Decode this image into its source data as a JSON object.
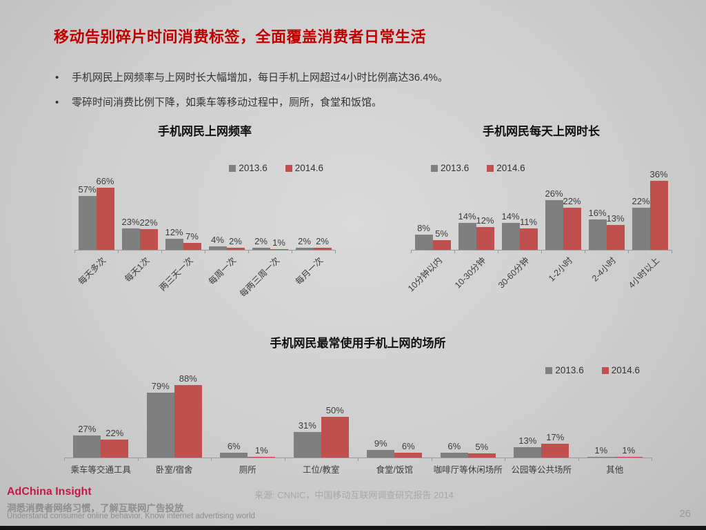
{
  "slide": {
    "title": "移动告别碎片时间消费标签，全面覆盖消费者日常生活",
    "title_color": "#C00000",
    "bullets": [
      "手机网民上网频率与上网时长大幅增加，每日手机上网超过4小时比例高达36.4%。",
      "零碎时间消费比例下降，如乘车等移动过程中，厕所，食堂和饭馆。"
    ]
  },
  "colors": {
    "series_2013": "#7F7F7F",
    "series_2014": "#C0504D",
    "axis": "#9a9a9a"
  },
  "chart_data": [
    {
      "type": "bar",
      "title": "手机网民上网频率",
      "unit": "%",
      "categories": [
        "每天多次",
        "每天1次",
        "两三天一次",
        "每周一次",
        "每两三周一次",
        "每月一次"
      ],
      "series": [
        {
          "name": "2013.6",
          "color": "#7F7F7F",
          "values": [
            57,
            23,
            12,
            4,
            2,
            2
          ]
        },
        {
          "name": "2014.6",
          "color": "#C0504D",
          "values": [
            66,
            22,
            7,
            2,
            1,
            2
          ]
        }
      ],
      "ylim": [
        0,
        90
      ],
      "grid": false,
      "legend_position": "top-right",
      "rotated_tick_labels": true
    },
    {
      "type": "bar",
      "title": "手机网民每天上网时长",
      "unit": "%",
      "categories": [
        "10分钟以内",
        "10-30分钟",
        "30-60分钟",
        "1-2小时",
        "2-4小时",
        "4小时以上"
      ],
      "series": [
        {
          "name": "2013.6",
          "color": "#7F7F7F",
          "values": [
            8,
            14,
            14,
            26,
            16,
            22
          ]
        },
        {
          "name": "2014.6",
          "color": "#C0504D",
          "values": [
            5,
            12,
            11,
            22,
            13,
            36
          ]
        }
      ],
      "ylim": [
        0,
        45
      ],
      "grid": false,
      "legend_position": "top-left",
      "rotated_tick_labels": true
    },
    {
      "type": "bar",
      "title": "手机网民最常使用手机上网的场所",
      "unit": "%",
      "categories": [
        "乘车等交通工具",
        "卧室/宿舍",
        "厕所",
        "工位/教室",
        "食堂/饭馆",
        "咖啡厅等休闲场所",
        "公园等公共场所",
        "其他"
      ],
      "series": [
        {
          "name": "2013.6",
          "color": "#7F7F7F",
          "values": [
            27,
            79,
            6,
            31,
            9,
            6,
            13,
            1
          ]
        },
        {
          "name": "2014.6",
          "color": "#C0504D",
          "values": [
            22,
            88,
            1,
            50,
            6,
            5,
            17,
            1
          ]
        }
      ],
      "ylim": [
        0,
        95
      ],
      "grid": false,
      "legend_position": "top-right",
      "rotated_tick_labels": false
    }
  ],
  "footer": {
    "source": "来源: CNNIC，中国移动互联网调查研究报告 2014",
    "brand": "AdChina Insight",
    "brand_color": "#C01A4B",
    "tagline_cn": "洞悉消费者网络习惯，了解互联网广告投放",
    "tagline_en": "Understand consumer online behavior, Know internet advertising world",
    "page_number": "26"
  }
}
